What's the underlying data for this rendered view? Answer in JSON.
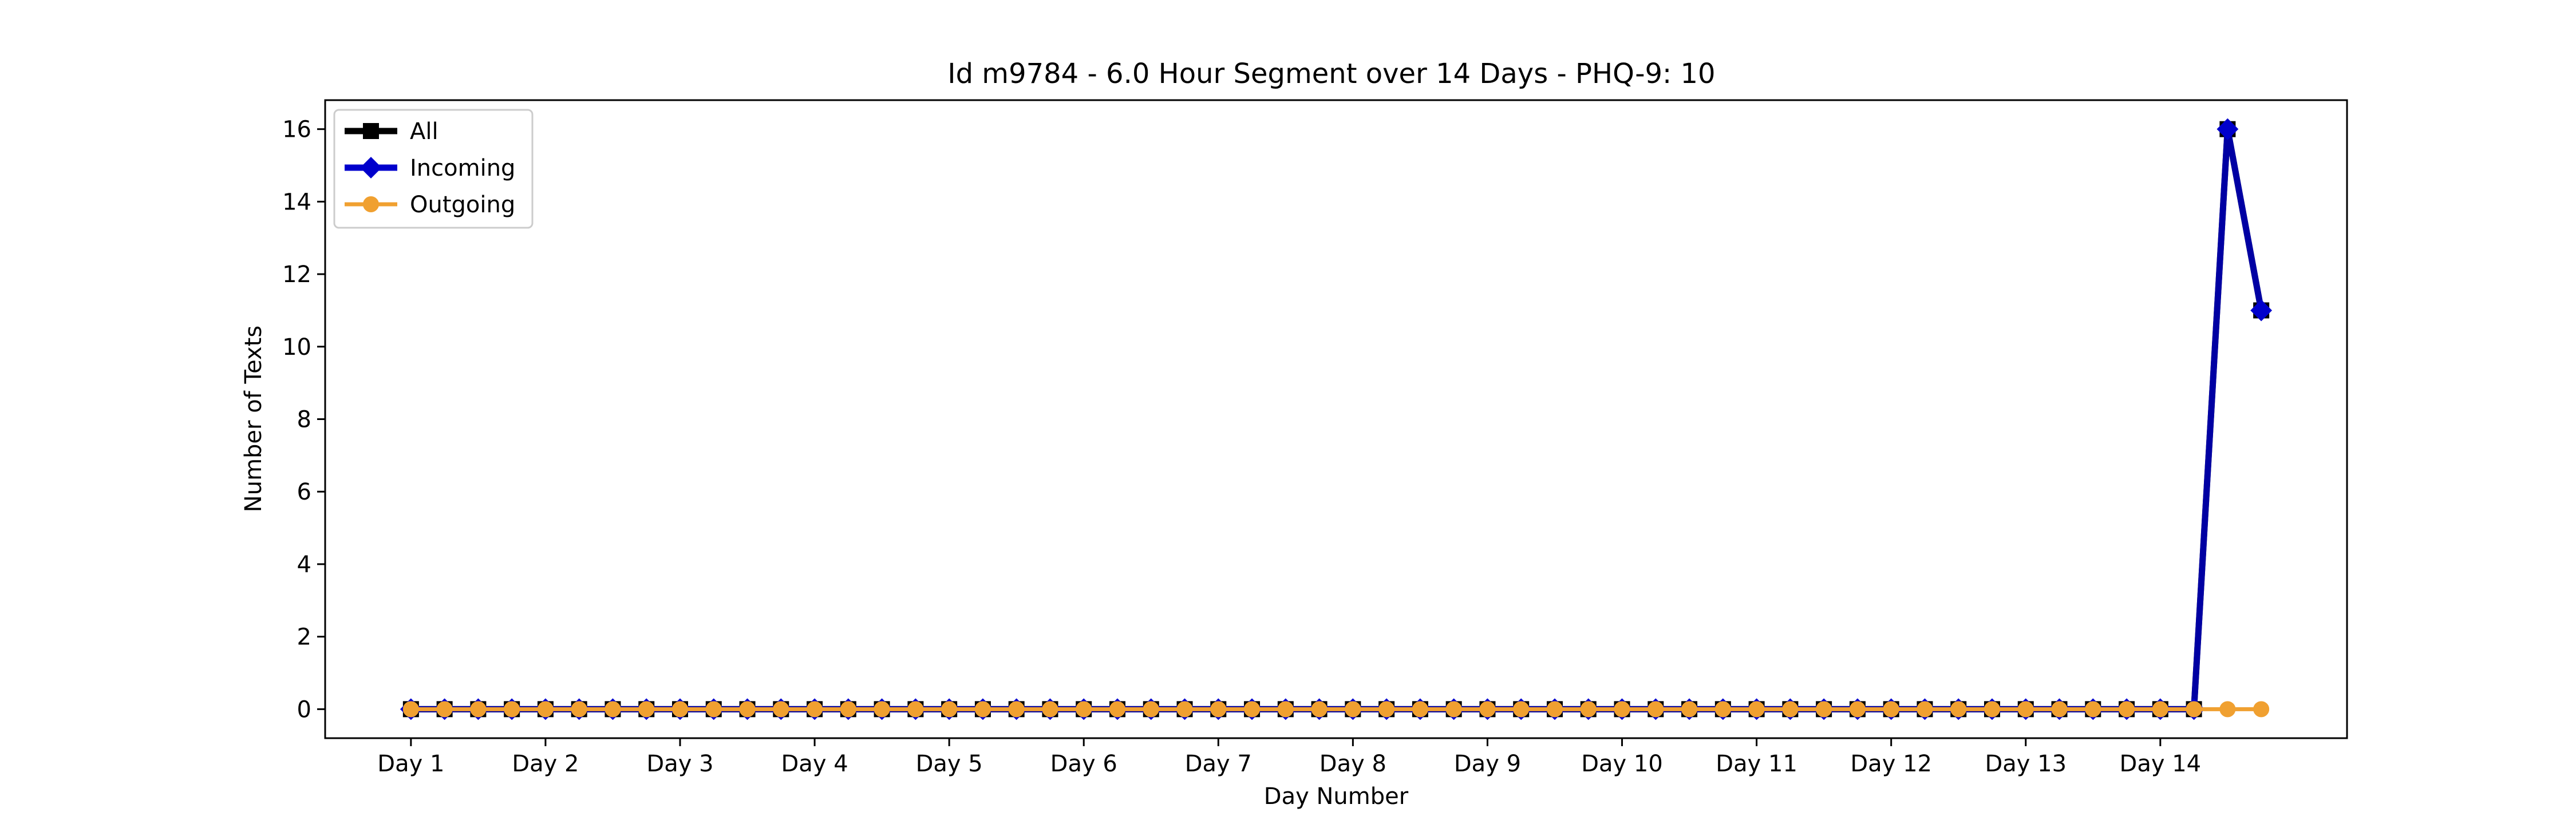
{
  "chart_data": {
    "type": "line",
    "title": "Id m9784 - 6.0 Hour Segment over 14 Days - PHQ-9: 10",
    "xlabel": "Day Number",
    "ylabel": "Number of Texts",
    "ylim": [
      -0.8,
      16.8
    ],
    "xlim": [
      -2.55,
      57.55
    ],
    "yticks": [
      0,
      2,
      4,
      6,
      8,
      10,
      12,
      14,
      16
    ],
    "xticks": [
      {
        "x": 0,
        "label": "Day 1"
      },
      {
        "x": 4,
        "label": "Day 2"
      },
      {
        "x": 8,
        "label": "Day 3"
      },
      {
        "x": 12,
        "label": "Day 4"
      },
      {
        "x": 16,
        "label": "Day 5"
      },
      {
        "x": 20,
        "label": "Day 6"
      },
      {
        "x": 24,
        "label": "Day 7"
      },
      {
        "x": 28,
        "label": "Day 8"
      },
      {
        "x": 32,
        "label": "Day 9"
      },
      {
        "x": 36,
        "label": "Day 10"
      },
      {
        "x": 40,
        "label": "Day 11"
      },
      {
        "x": 44,
        "label": "Day 12"
      },
      {
        "x": 48,
        "label": "Day 13"
      },
      {
        "x": 52,
        "label": "Day 14"
      }
    ],
    "grid": false,
    "legend_position": "top-left",
    "series": [
      {
        "name": "All",
        "color": "#000000",
        "marker": "square",
        "x": [
          0,
          1,
          2,
          3,
          4,
          5,
          6,
          7,
          8,
          9,
          10,
          11,
          12,
          13,
          14,
          15,
          16,
          17,
          18,
          19,
          20,
          21,
          22,
          23,
          24,
          25,
          26,
          27,
          28,
          29,
          30,
          31,
          32,
          33,
          34,
          35,
          36,
          37,
          38,
          39,
          40,
          41,
          42,
          43,
          44,
          45,
          46,
          47,
          48,
          49,
          50,
          51,
          52,
          53,
          54,
          55
        ],
        "values": [
          0,
          0,
          0,
          0,
          0,
          0,
          0,
          0,
          0,
          0,
          0,
          0,
          0,
          0,
          0,
          0,
          0,
          0,
          0,
          0,
          0,
          0,
          0,
          0,
          0,
          0,
          0,
          0,
          0,
          0,
          0,
          0,
          0,
          0,
          0,
          0,
          0,
          0,
          0,
          0,
          0,
          0,
          0,
          0,
          0,
          0,
          0,
          0,
          0,
          0,
          0,
          0,
          0,
          0,
          16,
          11
        ]
      },
      {
        "name": "Incoming",
        "color": "#0000cc",
        "marker": "diamond",
        "x": [
          0,
          1,
          2,
          3,
          4,
          5,
          6,
          7,
          8,
          9,
          10,
          11,
          12,
          13,
          14,
          15,
          16,
          17,
          18,
          19,
          20,
          21,
          22,
          23,
          24,
          25,
          26,
          27,
          28,
          29,
          30,
          31,
          32,
          33,
          34,
          35,
          36,
          37,
          38,
          39,
          40,
          41,
          42,
          43,
          44,
          45,
          46,
          47,
          48,
          49,
          50,
          51,
          52,
          53,
          54,
          55
        ],
        "values": [
          0,
          0,
          0,
          0,
          0,
          0,
          0,
          0,
          0,
          0,
          0,
          0,
          0,
          0,
          0,
          0,
          0,
          0,
          0,
          0,
          0,
          0,
          0,
          0,
          0,
          0,
          0,
          0,
          0,
          0,
          0,
          0,
          0,
          0,
          0,
          0,
          0,
          0,
          0,
          0,
          0,
          0,
          0,
          0,
          0,
          0,
          0,
          0,
          0,
          0,
          0,
          0,
          0,
          0,
          16,
          11
        ]
      },
      {
        "name": "Outgoing",
        "color": "#f0a030",
        "marker": "circle",
        "x": [
          0,
          1,
          2,
          3,
          4,
          5,
          6,
          7,
          8,
          9,
          10,
          11,
          12,
          13,
          14,
          15,
          16,
          17,
          18,
          19,
          20,
          21,
          22,
          23,
          24,
          25,
          26,
          27,
          28,
          29,
          30,
          31,
          32,
          33,
          34,
          35,
          36,
          37,
          38,
          39,
          40,
          41,
          42,
          43,
          44,
          45,
          46,
          47,
          48,
          49,
          50,
          51,
          52,
          53,
          54,
          55
        ],
        "values": [
          0,
          0,
          0,
          0,
          0,
          0,
          0,
          0,
          0,
          0,
          0,
          0,
          0,
          0,
          0,
          0,
          0,
          0,
          0,
          0,
          0,
          0,
          0,
          0,
          0,
          0,
          0,
          0,
          0,
          0,
          0,
          0,
          0,
          0,
          0,
          0,
          0,
          0,
          0,
          0,
          0,
          0,
          0,
          0,
          0,
          0,
          0,
          0,
          0,
          0,
          0,
          0,
          0,
          0,
          0,
          0
        ]
      }
    ]
  }
}
